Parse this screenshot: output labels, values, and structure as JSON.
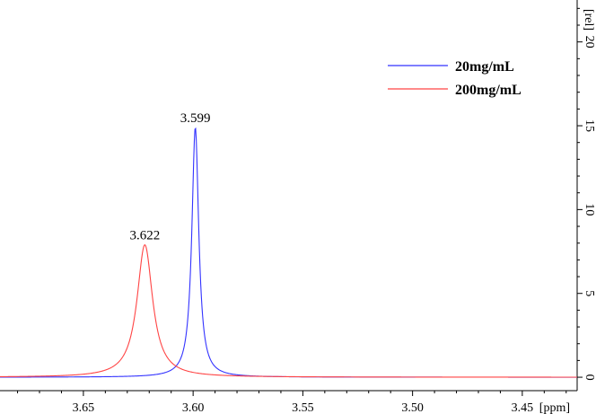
{
  "chart_data": {
    "type": "line",
    "xlabel": "[ppm]",
    "ylabel": "[rel]",
    "xlim": [
      3.688,
      3.425
    ],
    "ylim": [
      -0.8,
      22.5
    ],
    "x_reversed": true,
    "grid": false,
    "legend_position": "top-right",
    "x_ticks": [
      3.65,
      3.6,
      3.55,
      3.5,
      3.45
    ],
    "x_tick_labels": [
      "3.65",
      "3.60",
      "3.55",
      "3.50",
      "3.45"
    ],
    "y_ticks": [
      0,
      5,
      10,
      15,
      20
    ],
    "y_tick_labels": [
      "0",
      "5",
      "10",
      "15",
      "20"
    ],
    "series": [
      {
        "name": "20mg/mL",
        "color": "#3333ff",
        "peak_x": 3.599,
        "peak_y": 14.9,
        "half_width": 0.0019
      },
      {
        "name": "200mg/mL",
        "color": "#ff4444",
        "peak_x": 3.622,
        "peak_y": 7.9,
        "half_width": 0.0043
      }
    ],
    "annotations": [
      {
        "text": "3.599",
        "x": 3.599,
        "y": 14.9
      },
      {
        "text": "3.622",
        "x": 3.622,
        "y": 7.9
      }
    ]
  }
}
